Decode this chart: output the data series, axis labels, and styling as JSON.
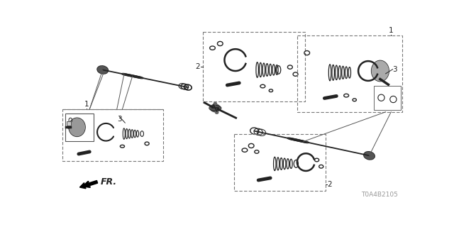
{
  "bg_color": "#ffffff",
  "line_color": "#000000",
  "gray_color": "#888888",
  "dark_color": "#222222",
  "part_number": "T0A4B2105",
  "fig_width": 6.4,
  "fig_height": 3.2,
  "dpi": 100,
  "labels": {
    "1": "1",
    "2": "2",
    "3": "3",
    "fr": "FR."
  }
}
